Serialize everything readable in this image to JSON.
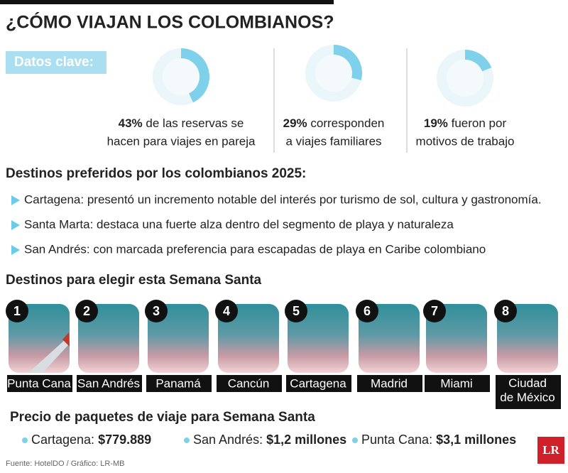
{
  "title": "¿CÓMO VIAJAN LOS COLOMBIANOS?",
  "key_data": {
    "label": "Datos clave:",
    "stats": [
      {
        "value": 43,
        "label": "43%",
        "line1": "de las reservas se",
        "line2": "hacen para viajes en pareja"
      },
      {
        "value": 29,
        "label": "29%",
        "line1": "corresponden",
        "line2": "a viajes familiares"
      },
      {
        "value": 19,
        "label": "19%",
        "line1": "fueron por",
        "line2": "motivos de trabajo"
      }
    ]
  },
  "preferred": {
    "heading": "Destinos preferidos por los colombianos 2025:",
    "items": [
      "Cartagena: presentó un incremento notable del interés por turismo de sol, cultura y gastronomía.",
      "Santa Marta: destaca una fuerte alza dentro del segmento de playa y naturaleza",
      "San Andrés: con marcada preferencia para escapadas de playa en Caribe colombiano"
    ]
  },
  "holy_week": {
    "heading": "Destinos para elegir esta Semana Santa",
    "destinations": [
      {
        "rank": "1",
        "name": "Punta Cana"
      },
      {
        "rank": "2",
        "name": "San Andrés"
      },
      {
        "rank": "3",
        "name": "Panamá"
      },
      {
        "rank": "4",
        "name": "Cancún"
      },
      {
        "rank": "5",
        "name": "Cartagena"
      },
      {
        "rank": "6",
        "name": "Madrid"
      },
      {
        "rank": "7",
        "name": "Miami"
      },
      {
        "rank": "8",
        "name": "Ciudad de México"
      }
    ]
  },
  "prices": {
    "heading": "Precio de paquetes de viaje para Semana Santa",
    "items": [
      {
        "place": "Cartagena:",
        "price": "$779.889"
      },
      {
        "place": "San Andrés:",
        "price": "$1,2 millones"
      },
      {
        "place": "Punta Cana:",
        "price": "$3,1 millones"
      }
    ]
  },
  "source": "Fuente: HotelDO / Gráfico: LR-MB",
  "logo": "LR"
}
